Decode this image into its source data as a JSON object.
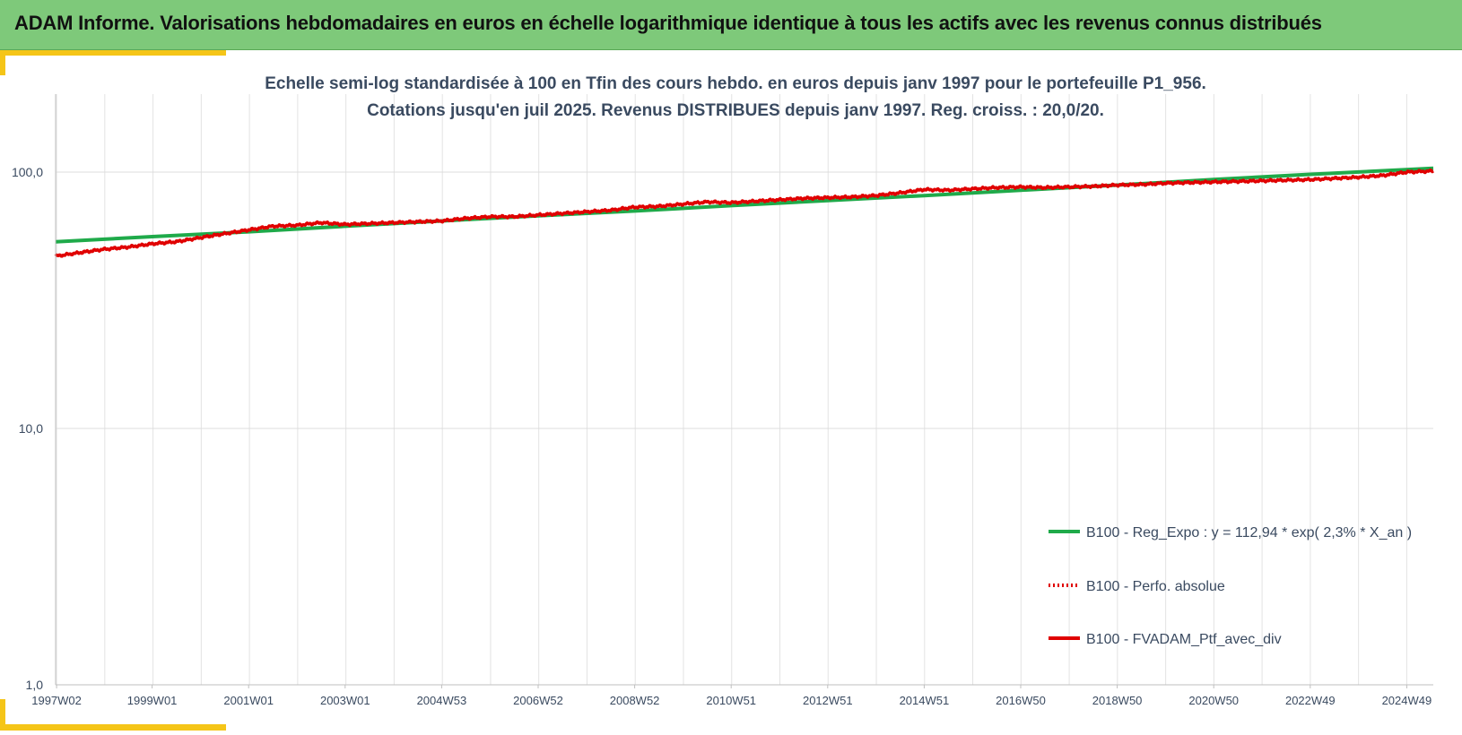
{
  "banner": {
    "title": "ADAM Informe. Valorisations hebdomadaires en euros en échelle logarithmique identique à tous les actifs avec les revenus connus distribués"
  },
  "colors": {
    "banner_bg": "#7ec97a",
    "accent_gold": "#f5c518",
    "regression_green": "#1faa4a",
    "portfolio_red": "#e00000"
  },
  "chart_data": {
    "type": "line",
    "title": "Echelle semi-log standardisée  à 100 en Tfin des cours hebdo.  en euros depuis janv 1997 pour le portefeuille P1_956.",
    "subtitle": "Cotations jusqu'en juil 2025. Revenus DISTRIBUES depuis janv 1997. Reg. croiss. : 20,0/20.",
    "xlabel": "",
    "ylabel": "",
    "y_scale": "log",
    "ylim": [
      1,
      200
    ],
    "y_ticks": [
      "1,0",
      "10,0",
      "100,0"
    ],
    "y_tick_values": [
      1,
      10,
      100
    ],
    "x_range": [
      1997.0,
      2025.55
    ],
    "x_ticks": [
      "1997W02",
      "1999W01",
      "2001W01",
      "2003W01",
      "2004W53",
      "2006W52",
      "2008W52",
      "2010W51",
      "2012W51",
      "2014W51",
      "2016W50",
      "2018W50",
      "2020W50",
      "2022W49",
      "2024W49"
    ],
    "x_tick_years": [
      1997.02,
      1999.0,
      2001.0,
      2003.0,
      2005.0,
      2007.0,
      2009.0,
      2011.0,
      2013.0,
      2015.0,
      2017.0,
      2019.0,
      2021.0,
      2023.0,
      2025.0
    ],
    "grid": true,
    "legend_position": "bottom-right",
    "legend": [
      "B100 - Reg_Expo : y = 112,94 * exp( 2,3% *  X_an )",
      "B100 - Perfo. absolue",
      "B100 - FVADAM_Ptf_avec_div"
    ],
    "series": [
      {
        "name": "B100 - Reg_Expo : y = 112,94 * exp( 2,3% *  X_an )",
        "style": "solid",
        "color": "#1faa4a",
        "x": [
          1997.0,
          1999.0,
          2001.0,
          2003.0,
          2005.0,
          2007.0,
          2009.0,
          2011.0,
          2013.0,
          2015.0,
          2017.0,
          2019.0,
          2021.0,
          2023.0,
          2025.55
        ],
        "values": [
          53.5,
          56.0,
          58.5,
          61.5,
          64.5,
          67.5,
          70.5,
          74.0,
          77.5,
          81.0,
          85.0,
          89.0,
          93.5,
          98.0,
          103.5
        ]
      },
      {
        "name": "B100 - Perfo. absolue",
        "style": "dotted",
        "color": "#e00000",
        "x": [],
        "values": []
      },
      {
        "name": "B100 - FVADAM_Ptf_avec_div",
        "style": "solid",
        "color": "#e00000",
        "x": [
          1997.0,
          1997.5,
          1998.0,
          1998.5,
          1999.0,
          1999.5,
          2000.0,
          2000.5,
          2001.0,
          2001.5,
          2002.0,
          2002.5,
          2003.0,
          2003.5,
          2004.0,
          2004.5,
          2005.0,
          2005.5,
          2006.0,
          2006.5,
          2007.0,
          2007.5,
          2008.0,
          2008.5,
          2009.0,
          2009.5,
          2010.0,
          2010.5,
          2011.0,
          2011.5,
          2012.0,
          2012.5,
          2013.0,
          2013.5,
          2014.0,
          2014.5,
          2015.0,
          2015.5,
          2016.0,
          2016.5,
          2017.0,
          2017.5,
          2018.0,
          2018.5,
          2019.0,
          2019.5,
          2020.0,
          2020.5,
          2021.0,
          2021.5,
          2022.0,
          2022.5,
          2023.0,
          2023.5,
          2024.0,
          2024.5,
          2025.0,
          2025.55
        ],
        "values": [
          47.0,
          48.5,
          50.0,
          51.0,
          52.5,
          53.5,
          55.5,
          57.5,
          59.5,
          61.5,
          62.0,
          63.5,
          62.5,
          63.0,
          63.5,
          64.0,
          64.5,
          66.0,
          67.0,
          67.0,
          68.0,
          69.0,
          70.0,
          71.0,
          73.0,
          73.5,
          75.0,
          76.5,
          76.0,
          77.0,
          78.0,
          79.0,
          79.5,
          80.0,
          81.0,
          83.0,
          85.5,
          85.0,
          86.0,
          87.0,
          87.5,
          87.0,
          87.5,
          88.0,
          89.0,
          89.5,
          90.5,
          91.0,
          91.5,
          92.0,
          92.5,
          93.0,
          93.5,
          94.5,
          95.5,
          97.0,
          100.0,
          101.0
        ]
      }
    ]
  }
}
